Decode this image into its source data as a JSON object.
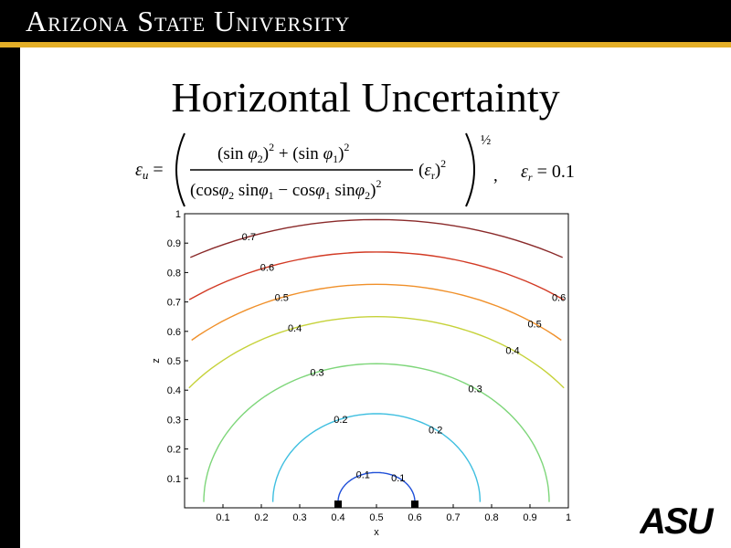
{
  "header": {
    "university": "Arizona State University"
  },
  "slide": {
    "title": "Horizontal Uncertainty"
  },
  "equation": {
    "lhs": "εu =",
    "numerator": "(sin φ2)^2 + (sin φ1)^2",
    "denominator": "(cos φ2 sin φ1 − cos φ1 sin φ2)^2",
    "factor": "(εr)^2",
    "power": "1/2",
    "condition": "εr = 0.1"
  },
  "logo": {
    "text": "ASU"
  },
  "chart_data": {
    "type": "contour",
    "title": "",
    "xlabel": "x",
    "ylabel": "z",
    "xlim": [
      0,
      1
    ],
    "ylim": [
      0,
      1
    ],
    "xticks": [
      "0.1",
      "0.2",
      "0.3",
      "0.4",
      "0.5",
      "0.6",
      "0.7",
      "0.8",
      "0.9",
      "1"
    ],
    "yticks": [
      "0.1",
      "0.2",
      "0.3",
      "0.4",
      "0.5",
      "0.6",
      "0.7",
      "0.8",
      "0.9",
      "1"
    ],
    "sensors": [
      {
        "x": 0.4,
        "z": 0.0
      },
      {
        "x": 0.6,
        "z": 0.0
      }
    ],
    "levels": [
      {
        "value": 0.1,
        "label": "0.1",
        "color": "#1f4fd8",
        "rx": 0.1,
        "rz": 0.1
      },
      {
        "value": 0.2,
        "label": "0.2",
        "color": "#3fbfe0",
        "rx": 0.27,
        "rz": 0.3
      },
      {
        "value": 0.3,
        "label": "0.3",
        "color": "#7ed67a",
        "rx": 0.45,
        "rz": 0.47
      },
      {
        "value": 0.4,
        "label": "0.4",
        "color": "#c6d23a",
        "rx": 0.62,
        "rz": 0.63
      },
      {
        "value": 0.5,
        "label": "0.5",
        "color": "#f0902a",
        "rx": 0.72,
        "rz": 0.74
      },
      {
        "value": 0.6,
        "label": "0.6",
        "color": "#d23a24",
        "rx": 0.83,
        "rz": 0.85
      },
      {
        "value": 0.7,
        "label": "0.7",
        "color": "#8a2a2a",
        "rx": 0.97,
        "rz": 0.96
      }
    ]
  }
}
